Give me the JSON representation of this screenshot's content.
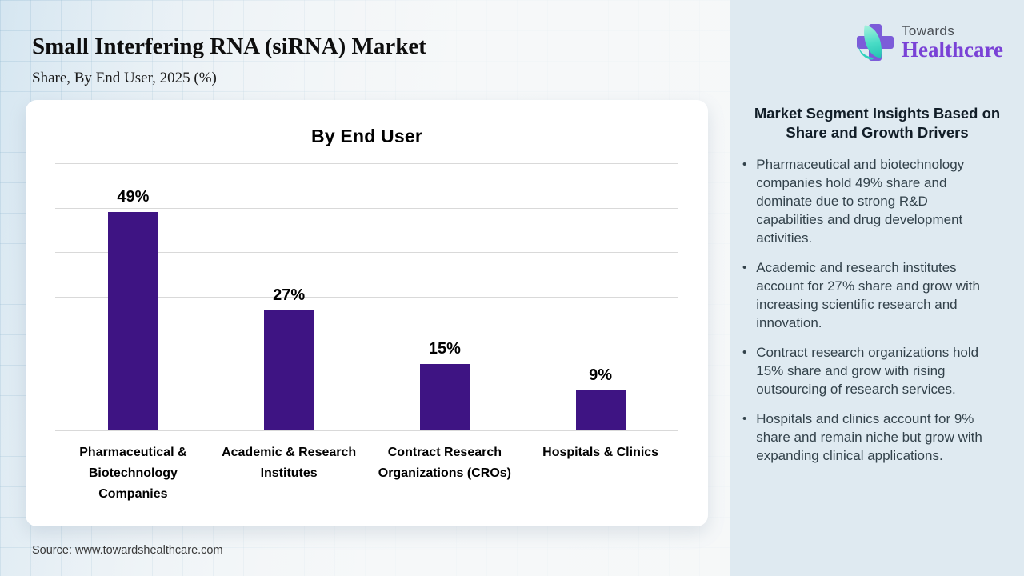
{
  "header": {
    "title": "Small Interfering RNA (siRNA) Market",
    "subtitle": "Share, By End User, 2025 (%)"
  },
  "source": "Source: www.towardshealthcare.com",
  "logo": {
    "line1": "Towards",
    "line2": "Healthcare",
    "icon": "cross-leaf-icon",
    "cross_color": "#7c5cd9",
    "leaf_color": "#49dcc6",
    "healthcare_color": "#7a42d6"
  },
  "sidebar": {
    "heading": "Market Segment Insights Based on Share and Growth Drivers",
    "bullets": [
      "Pharmaceutical and biotechnology companies hold 49% share and dominate due to strong R&D capabilities and drug development activities.",
      "Academic and research institutes account for 27% share and grow with increasing scientific research and innovation.",
      "Contract research organizations hold 15% share and grow with rising outsourcing of research services.",
      "Hospitals and clinics account for 9% share and remain niche but grow with expanding clinical applications."
    ]
  },
  "chart_data": {
    "type": "bar",
    "title": "By End User",
    "categories": [
      "Pharmaceutical & Biotechnology Companies",
      "Academic & Research Institutes",
      "Contract Research Organizations (CROs)",
      "Hospitals & Clinics"
    ],
    "values": [
      49,
      27,
      15,
      9
    ],
    "value_labels": [
      "49%",
      "27%",
      "15%",
      "9%"
    ],
    "unit": "%",
    "xlabel": "",
    "ylabel": "",
    "ylim": [
      0,
      60
    ],
    "grid_step": 10,
    "grid": true,
    "legend": false,
    "bar_color": "#3e1483",
    "gridline_color": "#d9d9d9"
  }
}
